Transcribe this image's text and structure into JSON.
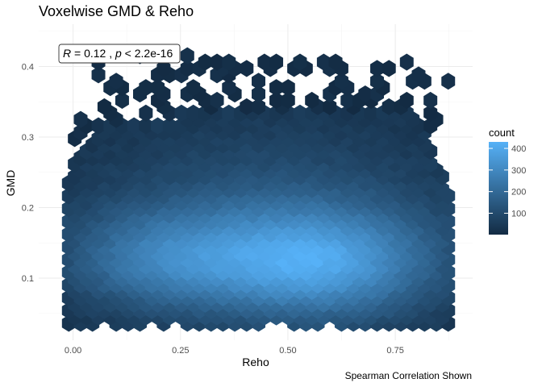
{
  "chart_data": {
    "type": "hexbin",
    "title": "Voxelwise GMD & Reho",
    "xlabel": "Reho",
    "ylabel": "GMD",
    "caption": "Spearman Correlation Shown",
    "annotation": {
      "r_label": "R",
      "r_value": " = 0.12 , ",
      "p_label": "p",
      "p_value": " < 2.2e-16"
    },
    "xlim": [
      -0.08,
      0.93
    ],
    "ylim": [
      0.012,
      0.46
    ],
    "x_ticks": [
      {
        "value": 0.0,
        "label": "0.00"
      },
      {
        "value": 0.25,
        "label": "0.25"
      },
      {
        "value": 0.5,
        "label": "0.50"
      },
      {
        "value": 0.75,
        "label": "0.75"
      }
    ],
    "y_ticks": [
      {
        "value": 0.1,
        "label": "0.1"
      },
      {
        "value": 0.2,
        "label": "0.2"
      },
      {
        "value": 0.3,
        "label": "0.3"
      },
      {
        "value": 0.4,
        "label": "0.4"
      }
    ],
    "grid": true,
    "legend": {
      "title": "count",
      "position": "right",
      "min": 1,
      "max": 430,
      "breaks": [
        {
          "value": 100,
          "label": "100"
        },
        {
          "value": 200,
          "label": "200"
        },
        {
          "value": 300,
          "label": "300"
        },
        {
          "value": 400,
          "label": "400"
        }
      ],
      "low_color": "#132b43",
      "high_color": "#56b1f7"
    },
    "hexbin": {
      "x_range": [
        -0.01,
        0.88
      ],
      "y_range": [
        0.036,
        0.42
      ],
      "peak_count": 430,
      "peak_location": [
        0.57,
        0.125
      ]
    }
  }
}
